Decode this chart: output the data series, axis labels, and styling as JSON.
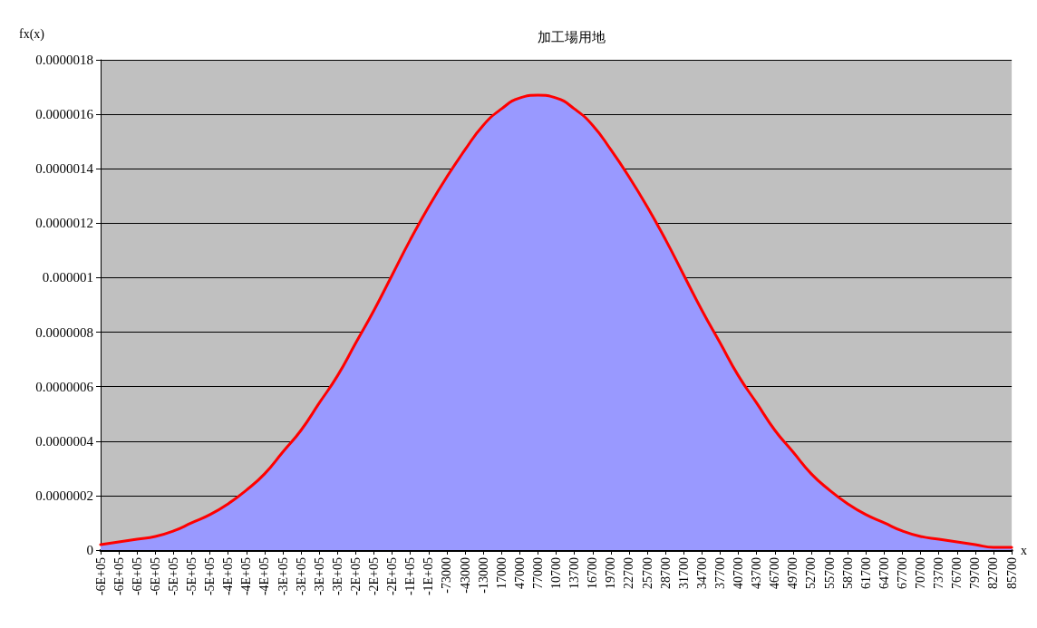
{
  "chart_data": {
    "type": "area",
    "title": "加工場用地",
    "xlabel": "x",
    "ylabel": "fx(x)",
    "categories": [
      "-6E+05",
      "-6E+05",
      "-6E+05",
      "-6E+05",
      "-5E+05",
      "-5E+05",
      "-5E+05",
      "-4E+05",
      "-4E+05",
      "-4E+05",
      "-3E+05",
      "-3E+05",
      "-3E+05",
      "-3E+05",
      "-2E+05",
      "-2E+05",
      "-2E+05",
      "-1E+05",
      "-1E+05",
      "-73000",
      "-43000",
      "-13000",
      "17000",
      "47000",
      "77000",
      "10700",
      "13700",
      "16700",
      "19700",
      "22700",
      "25700",
      "28700",
      "31700",
      "34700",
      "37700",
      "40700",
      "43700",
      "46700",
      "49700",
      "52700",
      "55700",
      "58700",
      "61700",
      "64700",
      "67700",
      "70700",
      "73700",
      "76700",
      "79700",
      "82700",
      "85700"
    ],
    "series": [
      {
        "color": "#9999ff",
        "values": [
          2e-08,
          3e-08,
          4e-08,
          5e-08,
          7e-08,
          1e-07,
          1.3e-07,
          1.7e-07,
          2.2e-07,
          2.8e-07,
          3.6e-07,
          4.4e-07,
          5.4e-07,
          6.4e-07,
          7.6e-07,
          8.8e-07,
          1.01e-06,
          1.14e-06,
          1.26e-06,
          1.37e-06,
          1.47e-06,
          1.56e-06,
          1.62e-06,
          1.66e-06,
          1.67e-06,
          1.66e-06,
          1.62e-06,
          1.56e-06,
          1.47e-06,
          1.37e-06,
          1.26e-06,
          1.14e-06,
          1.01e-06,
          8.8e-07,
          7.6e-07,
          6.4e-07,
          5.4e-07,
          4.4e-07,
          3.6e-07,
          2.8e-07,
          2.2e-07,
          1.7e-07,
          1.3e-07,
          1e-07,
          7e-08,
          5e-08,
          4e-08,
          3e-08,
          2e-08,
          1e-08,
          1e-08
        ]
      },
      {
        "type": "line",
        "color": "#ff0000",
        "values": [
          2e-08,
          3e-08,
          4e-08,
          5e-08,
          7e-08,
          1e-07,
          1.3e-07,
          1.7e-07,
          2.2e-07,
          2.8e-07,
          3.6e-07,
          4.4e-07,
          5.4e-07,
          6.4e-07,
          7.6e-07,
          8.8e-07,
          1.01e-06,
          1.14e-06,
          1.26e-06,
          1.37e-06,
          1.47e-06,
          1.56e-06,
          1.62e-06,
          1.66e-06,
          1.67e-06,
          1.66e-06,
          1.62e-06,
          1.56e-06,
          1.47e-06,
          1.37e-06,
          1.26e-06,
          1.14e-06,
          1.01e-06,
          8.8e-07,
          7.6e-07,
          6.4e-07,
          5.4e-07,
          4.4e-07,
          3.6e-07,
          2.8e-07,
          2.2e-07,
          1.7e-07,
          1.3e-07,
          1e-07,
          7e-08,
          5e-08,
          4e-08,
          3e-08,
          2e-08,
          1e-08,
          1e-08
        ]
      }
    ],
    "ylim": [
      0,
      1.8e-06
    ],
    "yticks": [
      0,
      {
        "value": 2e-07,
        "label": "0.0000002"
      },
      {
        "value": 4e-07,
        "label": "0.0000004"
      },
      {
        "value": 6e-07,
        "label": "0.0000006"
      },
      {
        "value": 8e-07,
        "label": "0.0000008"
      },
      {
        "value": 1e-06,
        "label": "0.000001"
      },
      {
        "value": 1.2e-06,
        "label": "0.0000012"
      },
      {
        "value": 1.4e-06,
        "label": "0.0000014"
      },
      {
        "value": 1.6e-06,
        "label": "0.0000016"
      },
      {
        "value": 1.8e-06,
        "label": "0.0000018"
      }
    ],
    "grid": "y",
    "marker": "none",
    "line_style": "solid"
  }
}
